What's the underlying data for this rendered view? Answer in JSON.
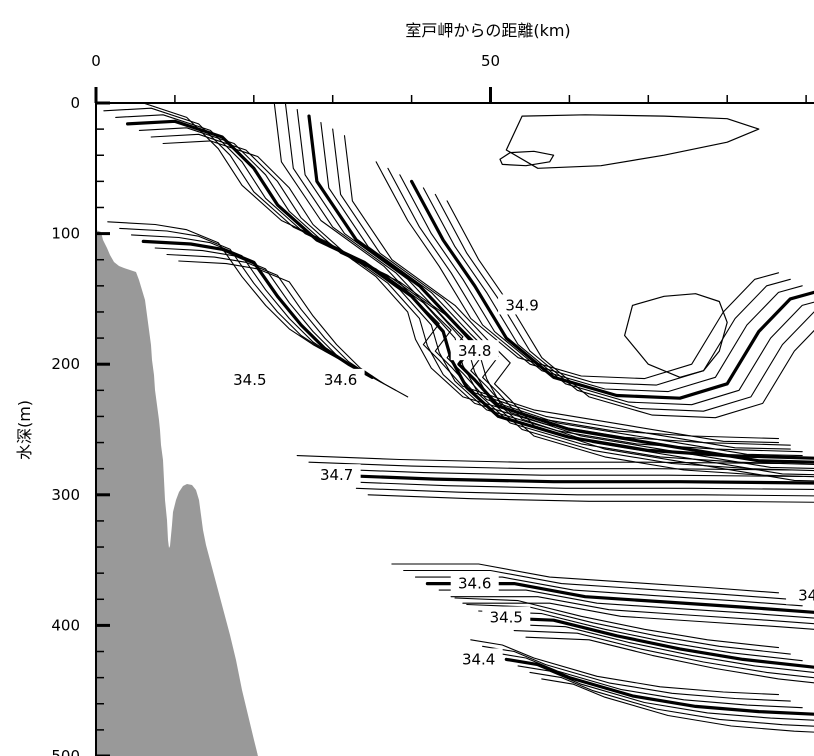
{
  "chart_data": {
    "type": "contour",
    "xlabel": "室戸岬からの距離(km)",
    "ylabel": "水深(m)",
    "xlim": [
      0,
      91
    ],
    "ylim": [
      500,
      0
    ],
    "x_axis_position": "top",
    "x_ticks": [
      {
        "value": 0,
        "label": "0"
      },
      {
        "value": 50,
        "label": "50"
      }
    ],
    "y_ticks": [
      {
        "value": 0,
        "label": "0"
      },
      {
        "value": 100,
        "label": "100"
      },
      {
        "value": 200,
        "label": "200"
      },
      {
        "value": 300,
        "label": "300"
      },
      {
        "value": 400,
        "label": "400"
      },
      {
        "value": 500,
        "label": "500"
      }
    ],
    "grid": false,
    "colors": {
      "line": "#000000",
      "seafloor": "#999999",
      "background": "#ffffff"
    },
    "contour_labels": [
      {
        "text": "34.9",
        "x": 54,
        "y": 155
      },
      {
        "text": "34.8",
        "x": 48,
        "y": 190
      },
      {
        "text": "34.5",
        "x": 19.5,
        "y": 212
      },
      {
        "text": "34.6",
        "x": 31,
        "y": 212
      },
      {
        "text": "34.7",
        "x": 30.5,
        "y": 285
      },
      {
        "text": "34.6",
        "x": 48,
        "y": 368
      },
      {
        "text": "34.5",
        "x": 52,
        "y": 394
      },
      {
        "text": "34.4",
        "x": 48.5,
        "y": 426
      },
      {
        "text": "34.",
        "x": 90.5,
        "y": 377
      }
    ],
    "bold_isohalines": [
      {
        "value": 34.9,
        "points": [
          [
            40,
            60
          ],
          [
            44,
            105
          ],
          [
            48,
            140
          ],
          [
            52,
            180
          ],
          [
            58,
            210
          ],
          [
            66,
            224
          ],
          [
            74,
            226
          ],
          [
            80,
            215
          ],
          [
            84,
            175
          ],
          [
            88,
            150
          ],
          [
            91,
            145
          ]
        ]
      },
      {
        "value": 34.8,
        "points": [
          [
            27,
            10
          ],
          [
            28,
            60
          ],
          [
            33,
            105
          ],
          [
            41,
            140
          ],
          [
            46,
            172
          ],
          [
            48,
            184
          ],
          [
            46,
            200
          ],
          [
            48,
            212
          ],
          [
            51,
            232
          ],
          [
            60,
            250
          ],
          [
            72,
            262
          ],
          [
            84,
            274
          ],
          [
            91,
            275
          ]
        ]
      },
      {
        "value": 34.7,
        "points": [
          [
            4,
            16
          ],
          [
            10,
            14
          ],
          [
            16,
            26
          ],
          [
            20,
            50
          ],
          [
            23,
            78
          ],
          [
            28,
            105
          ],
          [
            34,
            122
          ],
          [
            40,
            148
          ],
          [
            44,
            175
          ],
          [
            45,
            196
          ],
          [
            47,
            218
          ],
          [
            51,
            240
          ],
          [
            60,
            256
          ],
          [
            70,
            266
          ],
          [
            80,
            270
          ],
          [
            91,
            272
          ]
        ]
      },
      {
        "value": 34.7,
        "points": [
          [
            30,
            285
          ],
          [
            43,
            288
          ],
          [
            58,
            290
          ],
          [
            74,
            290
          ],
          [
            91,
            291
          ]
        ]
      },
      {
        "value": 34.6,
        "points": [
          [
            42,
            368
          ],
          [
            53,
            368
          ],
          [
            62,
            378
          ],
          [
            72,
            382
          ],
          [
            82,
            386
          ],
          [
            91,
            390
          ]
        ]
      },
      {
        "value": 34.5,
        "points": [
          [
            50,
            394
          ],
          [
            58,
            396
          ],
          [
            66,
            408
          ],
          [
            74,
            418
          ],
          [
            82,
            426
          ],
          [
            91,
            432
          ]
        ]
      },
      {
        "value": 34.4,
        "points": [
          [
            52,
            426
          ],
          [
            56,
            430
          ],
          [
            60,
            440
          ],
          [
            68,
            454
          ],
          [
            76,
            462
          ],
          [
            84,
            466
          ],
          [
            91,
            468
          ]
        ]
      },
      {
        "value": 34.6,
        "points": [
          [
            6,
            106
          ],
          [
            12,
            108
          ],
          [
            16,
            112
          ],
          [
            20,
            122
          ],
          [
            23,
            148
          ],
          [
            26,
            170
          ],
          [
            29,
            188
          ],
          [
            32,
            200
          ],
          [
            35,
            210
          ]
        ]
      }
    ]
  }
}
